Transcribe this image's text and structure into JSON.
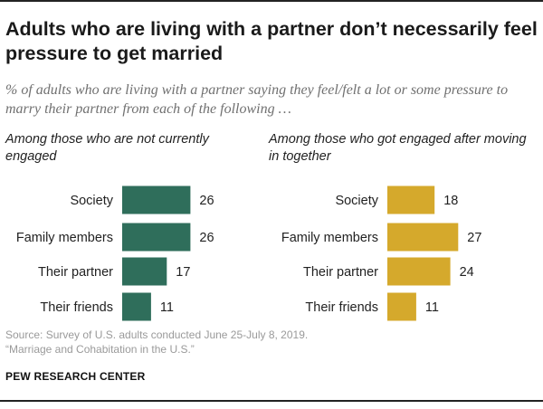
{
  "title": "Adults who are living with a partner don’t necessarily feel pressure to get married",
  "subtitle": "% of adults who are living with a partner saying they feel/felt a lot or some pressure to marry their partner from each of the following …",
  "source": {
    "line1": "Source: Survey of U.S. adults conducted June 25-July 8, 2019.",
    "line2": "“Marriage and Cohabitation in the U.S.”"
  },
  "brand": "PEW RESEARCH CENTER",
  "chart_data": [
    {
      "type": "bar",
      "orientation": "horizontal",
      "title": "Among those who are not currently engaged",
      "categories": [
        "Society",
        "Family members",
        "Their partner",
        "Their friends"
      ],
      "values": [
        26,
        26,
        17,
        11
      ],
      "color": "#2f6e5b",
      "xlim": [
        0,
        30
      ]
    },
    {
      "type": "bar",
      "orientation": "horizontal",
      "title": "Among those who got engaged after moving in together",
      "categories": [
        "Society",
        "Family members",
        "Their partner",
        "Their friends"
      ],
      "values": [
        18,
        27,
        24,
        11
      ],
      "color": "#d5a92c",
      "xlim": [
        0,
        30
      ]
    }
  ]
}
